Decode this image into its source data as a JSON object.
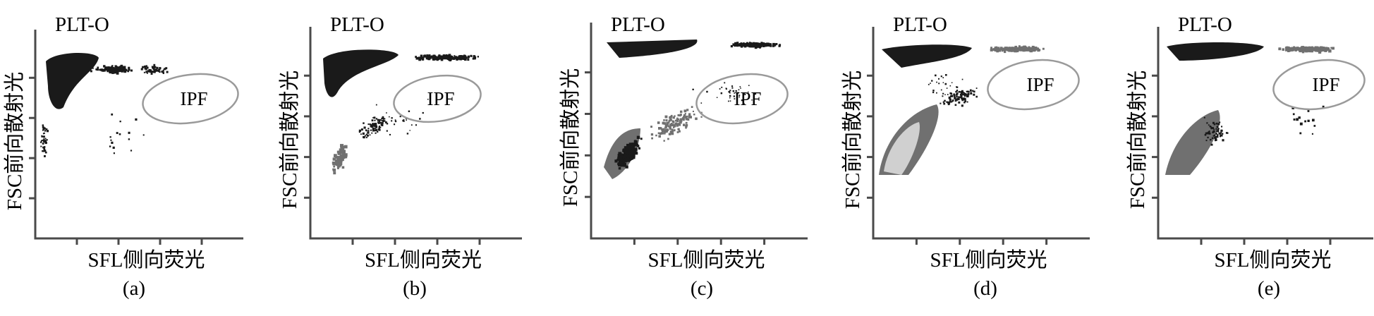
{
  "figure": {
    "panels": [
      {
        "caption": "(a)",
        "title": "PLT-O",
        "xlabel": "SFL侧向荧光",
        "ylabel": "FSC前向散射光",
        "gate_label": "IPF"
      },
      {
        "caption": "(b)",
        "title": "PLT-O",
        "xlabel": "SFL侧向荧光",
        "ylabel": "FSC前向散射光",
        "gate_label": "IPF"
      },
      {
        "caption": "(c)",
        "title": "PLT-O",
        "xlabel": "SFL侧向荧光",
        "ylabel": "FSC前向散射光",
        "gate_label": "IPF"
      },
      {
        "caption": "(d)",
        "title": "PLT-O",
        "xlabel": "SFL侧向荧光",
        "ylabel": "FSC前向散射光",
        "gate_label": "IPF"
      },
      {
        "caption": "(e)",
        "title": "PLT-O",
        "xlabel": "SFL侧向荧光",
        "ylabel": "FSC前向散射光",
        "gate_label": "IPF"
      }
    ]
  },
  "chart_data": [
    {
      "type": "scatter",
      "title": "PLT-O",
      "xlabel": "SFL侧向荧光",
      "ylabel": "FSC前向散射光",
      "caption": "(a)",
      "annotations": [
        "IPF"
      ],
      "grid": false,
      "colors": {
        "dense": "#1a1a1a",
        "medium": "#707070",
        "light": "#d0d0d0",
        "gate": "#9a9a9a"
      }
    },
    {
      "type": "scatter",
      "title": "PLT-O",
      "xlabel": "SFL侧向荧光",
      "ylabel": "FSC前向散射光",
      "caption": "(b)",
      "annotations": [
        "IPF"
      ],
      "grid": false
    },
    {
      "type": "scatter",
      "title": "PLT-O",
      "xlabel": "SFL侧向荧光",
      "ylabel": "FSC前向散射光",
      "caption": "(c)",
      "annotations": [
        "IPF"
      ],
      "grid": false
    },
    {
      "type": "scatter",
      "title": "PLT-O",
      "xlabel": "SFL侧向荧光",
      "ylabel": "FSC前向散射光",
      "caption": "(d)",
      "annotations": [
        "IPF"
      ],
      "grid": false
    },
    {
      "type": "scatter",
      "title": "PLT-O",
      "xlabel": "SFL侧向荧光",
      "ylabel": "FSC前向散射光",
      "caption": "(e)",
      "annotations": [
        "IPF"
      ],
      "grid": false
    }
  ]
}
